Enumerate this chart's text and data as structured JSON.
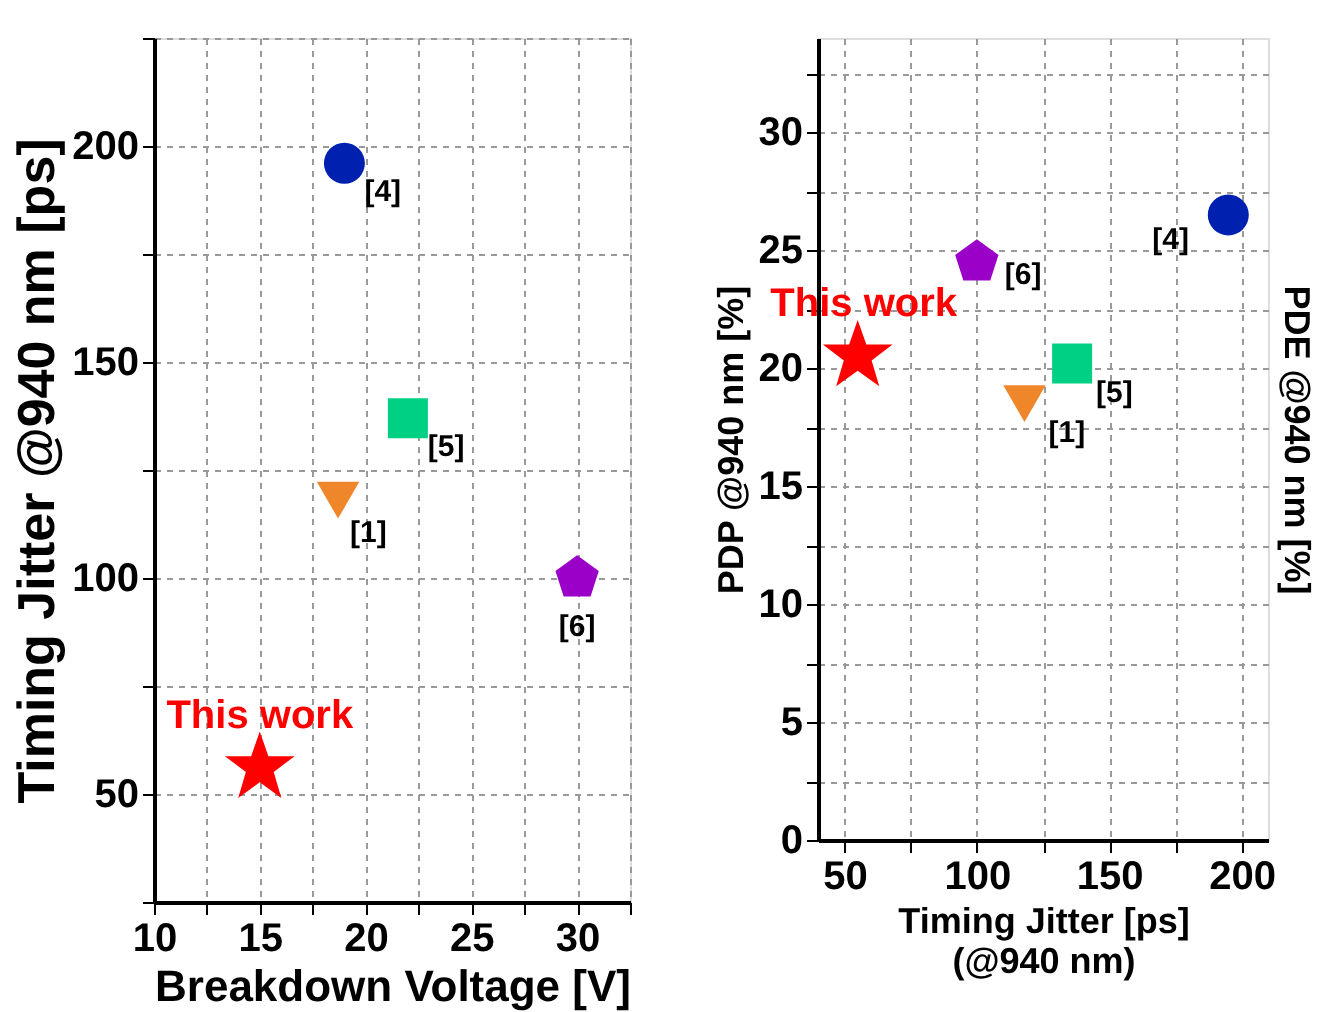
{
  "chart_data": [
    {
      "type": "scatter",
      "xlabel": "Breakdown Voltage [V]",
      "ylabel": "Timing Jitter @940 nm [ps]",
      "xlim": [
        10,
        32.5
      ],
      "xticks": [
        10,
        {
          "value": 12.5,
          "label": null
        },
        15,
        {
          "value": 17.5,
          "label": null
        },
        20,
        {
          "value": 22.5,
          "label": null
        },
        25,
        {
          "value": 27.5,
          "label": null
        },
        30,
        {
          "value": 32.5,
          "label": null
        }
      ],
      "ylim": [
        25,
        225
      ],
      "yticks": [
        {
          "value": 25,
          "label": null
        },
        50,
        {
          "value": 75,
          "label": null
        },
        100,
        {
          "value": 125,
          "label": null
        },
        150,
        {
          "value": 175,
          "label": null
        },
        200,
        {
          "value": 225,
          "label": null
        }
      ],
      "grid": true,
      "series": [
        {
          "name": "This work",
          "color": "#ff0000",
          "marker": "star",
          "x": [
            15
          ],
          "values": [
            56
          ]
        },
        {
          "name": "[4]",
          "color": "#0020b0",
          "marker": "circle",
          "x": [
            19
          ],
          "values": [
            196
          ]
        },
        {
          "name": "[5]",
          "color": "#00d084",
          "marker": "square",
          "x": [
            22
          ],
          "values": [
            137
          ]
        },
        {
          "name": "[1]",
          "color": "#f0862a",
          "marker": "triangle-down",
          "x": [
            18.7
          ],
          "values": [
            118
          ]
        },
        {
          "name": "[6]",
          "color": "#9b00c8",
          "x": [
            30
          ],
          "values": [
            100
          ]
        }
      ]
    },
    {
      "type": "scatter",
      "xlabel": "Timing Jitter [ps]\n(@940 nm)",
      "ylabel": "PDP @940 nm [%]",
      "y2label": "PDE @940 nm [%]",
      "xlim": [
        40,
        210
      ],
      "xticks": [
        50,
        {
          "value": 75,
          "label": null
        },
        100,
        {
          "value": 125,
          "label": null
        },
        150,
        {
          "value": 175,
          "label": null
        },
        200
      ],
      "ylim": [
        0,
        34
      ],
      "yticks": [
        0,
        {
          "value": 2.5,
          "label": null
        },
        5,
        {
          "value": 7.5,
          "label": null
        },
        10,
        {
          "value": 12.5,
          "label": null
        },
        15,
        {
          "value": 17.5,
          "label": null
        },
        20,
        {
          "value": 22.5,
          "label": null
        },
        25,
        {
          "value": 27.5,
          "label": null
        },
        30,
        {
          "value": 32.5,
          "label": null
        }
      ],
      "grid": true,
      "series": [
        {
          "name": "This work",
          "color": "#ff0000",
          "marker": "star",
          "x": [
            55
          ],
          "values": [
            20.5
          ]
        },
        {
          "name": "[6]",
          "color": "#9b00c8",
          "x": [
            100
          ],
          "values": [
            24.5
          ]
        },
        {
          "name": "[1]",
          "color": "#f0862a",
          "marker": "triangle-down",
          "x": [
            118
          ],
          "values": [
            18.5
          ]
        },
        {
          "name": "[5]",
          "color": "#00d084",
          "marker": "square",
          "x": [
            136
          ],
          "values": [
            20.2
          ]
        },
        {
          "name": "[4]",
          "color": "#0020b0",
          "marker": "circle",
          "x": [
            195
          ],
          "values": [
            26.5
          ]
        }
      ]
    }
  ]
}
